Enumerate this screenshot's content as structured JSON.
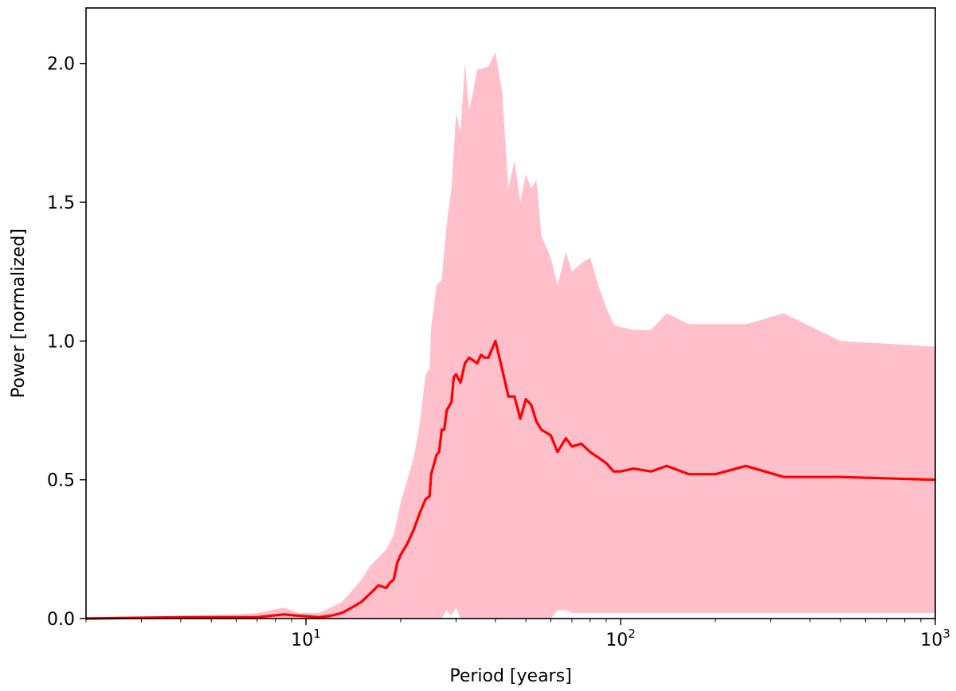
{
  "chart_data": {
    "type": "area",
    "title": "",
    "xlabel": "Period [years]",
    "ylabel": "Power [normalized]",
    "xscale": "log",
    "xlim": [
      2,
      1000
    ],
    "ylim": [
      0,
      2.2
    ],
    "grid": false,
    "legend": "none",
    "x_ticks": [
      {
        "value": 10,
        "base": "10",
        "exp": "1"
      },
      {
        "value": 100,
        "base": "10",
        "exp": "2"
      },
      {
        "value": 1000,
        "base": "10",
        "exp": "3"
      }
    ],
    "y_ticks": [
      {
        "value": 0.0,
        "label": "0.0"
      },
      {
        "value": 0.5,
        "label": "0.5"
      },
      {
        "value": 1.0,
        "label": "1.0"
      },
      {
        "value": 1.5,
        "label": "1.5"
      },
      {
        "value": 2.0,
        "label": "2.0"
      }
    ],
    "series": [
      {
        "kind": "line",
        "color": "#ff0000",
        "x": [
          2,
          4,
          7,
          8.5,
          9.5,
          11,
          12,
          13,
          14,
          15,
          16,
          17,
          18,
          18.5,
          19,
          19.5,
          20,
          21,
          22,
          23,
          24,
          24.7,
          25,
          26,
          26.5,
          27,
          27.5,
          28,
          29,
          29.5,
          30,
          31,
          32,
          33,
          34,
          35,
          36,
          37,
          38,
          40,
          42,
          44,
          46,
          48,
          50,
          52,
          54,
          56,
          60,
          63,
          67,
          70,
          75,
          80,
          85,
          90,
          95,
          100,
          110,
          125,
          140,
          165,
          200,
          250,
          330,
          500,
          1000
        ],
        "y": [
          0.0,
          0.005,
          0.005,
          0.015,
          0.01,
          0.005,
          0.01,
          0.02,
          0.04,
          0.06,
          0.09,
          0.12,
          0.11,
          0.13,
          0.14,
          0.2,
          0.23,
          0.27,
          0.32,
          0.38,
          0.43,
          0.44,
          0.52,
          0.59,
          0.6,
          0.68,
          0.68,
          0.75,
          0.78,
          0.87,
          0.88,
          0.85,
          0.92,
          0.94,
          0.93,
          0.92,
          0.95,
          0.94,
          0.94,
          1.0,
          0.9,
          0.8,
          0.8,
          0.72,
          0.79,
          0.77,
          0.71,
          0.68,
          0.66,
          0.6,
          0.65,
          0.62,
          0.63,
          0.6,
          0.58,
          0.56,
          0.53,
          0.53,
          0.54,
          0.53,
          0.55,
          0.52,
          0.52,
          0.55,
          0.51,
          0.51,
          0.5
        ]
      },
      {
        "kind": "band",
        "color": "#ffc0cb",
        "x": [
          2,
          4,
          6,
          7,
          8.5,
          9.5,
          11,
          12,
          13,
          14,
          15,
          16,
          17,
          18,
          19,
          20,
          21,
          22,
          23,
          24,
          24.7,
          25,
          26,
          27,
          28,
          29,
          30,
          31,
          32,
          33,
          34,
          35,
          36,
          38,
          40,
          42,
          44,
          46,
          48,
          50,
          52,
          54,
          56,
          60,
          63,
          67,
          70,
          75,
          80,
          85,
          90,
          95,
          100,
          110,
          125,
          140,
          165,
          200,
          250,
          330,
          500,
          1000
        ],
        "upper": [
          0.005,
          0.01,
          0.015,
          0.02,
          0.04,
          0.02,
          0.02,
          0.04,
          0.06,
          0.1,
          0.14,
          0.19,
          0.22,
          0.25,
          0.3,
          0.42,
          0.5,
          0.58,
          0.7,
          0.88,
          0.9,
          1.05,
          1.2,
          1.22,
          1.42,
          1.55,
          1.82,
          1.75,
          2.0,
          1.83,
          1.9,
          1.98,
          1.98,
          1.99,
          2.04,
          1.9,
          1.55,
          1.65,
          1.5,
          1.6,
          1.55,
          1.58,
          1.38,
          1.3,
          1.2,
          1.32,
          1.25,
          1.28,
          1.3,
          1.2,
          1.12,
          1.06,
          1.05,
          1.04,
          1.04,
          1.1,
          1.06,
          1.06,
          1.06,
          1.1,
          1.0,
          0.98
        ],
        "lower": [
          0.0,
          0.0,
          0.0,
          0.0,
          0.0,
          0.0,
          0.0,
          0.0,
          0.0,
          0.0,
          0.0,
          0.0,
          0.0,
          0.0,
          0.0,
          0.0,
          0.0,
          0.0,
          0.0,
          0.0,
          0.0,
          0.0,
          0.0,
          0.0,
          0.03,
          0.01,
          0.04,
          0.0,
          0.0,
          0.0,
          0.0,
          0.0,
          0.0,
          0.0,
          0.0,
          0.0,
          0.0,
          0.0,
          0.0,
          0.0,
          0.0,
          0.0,
          0.0,
          0.0,
          0.03,
          0.03,
          0.02,
          0.02,
          0.02,
          0.02,
          0.02,
          0.02,
          0.02,
          0.02,
          0.02,
          0.02,
          0.02,
          0.02,
          0.02,
          0.02,
          0.02,
          0.02
        ]
      }
    ]
  }
}
